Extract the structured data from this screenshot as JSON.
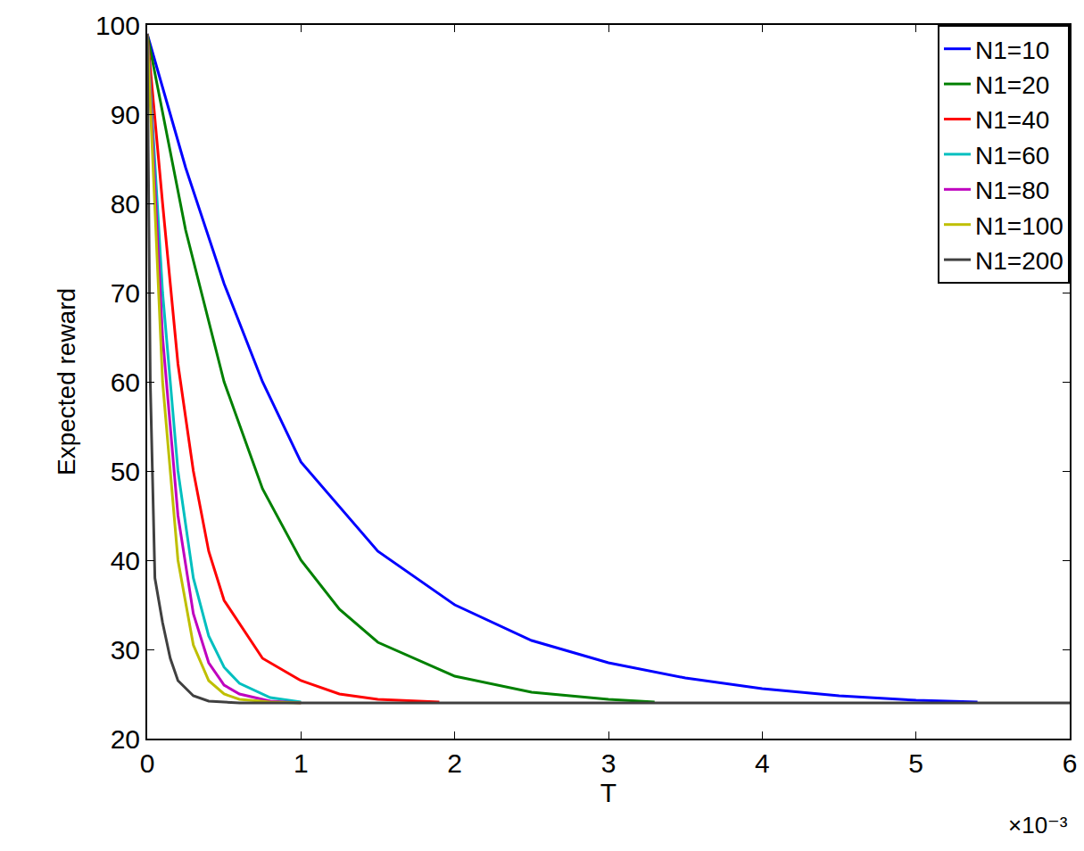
{
  "chart_data": {
    "type": "line",
    "x_label": "T",
    "y_label": "Expected reward",
    "annotations": [
      {
        "text": "×10⁻³"
      }
    ],
    "xlim": [
      0,
      0.006
    ],
    "xticks": [
      0,
      {
        "value": 0.001,
        "label": "1"
      },
      {
        "value": 0.002,
        "label": "2"
      },
      {
        "value": 0.003,
        "label": "3"
      },
      {
        "value": 0.004,
        "label": "4"
      },
      {
        "value": 0.005,
        "label": "5"
      },
      {
        "value": 0.006,
        "label": "6"
      }
    ],
    "ylim": [
      20,
      100
    ],
    "yticks": [
      20,
      30,
      40,
      50,
      60,
      70,
      80,
      90,
      100
    ],
    "grid": false,
    "legend": "top-right",
    "series": [
      {
        "name": "N1=10",
        "color": "#0000ff",
        "x": [
          0,
          0.00025,
          0.0005,
          0.00075,
          0.001,
          0.0015,
          0.002,
          0.0025,
          0.003,
          0.0035,
          0.004,
          0.0045,
          0.005,
          0.0054
        ],
        "values": [
          99,
          84,
          71,
          60,
          51,
          41,
          35,
          31,
          28.5,
          26.8,
          25.6,
          24.8,
          24.3,
          24.1
        ]
      },
      {
        "name": "N1=20",
        "color": "#008000",
        "x": [
          0,
          0.00025,
          0.0005,
          0.00075,
          0.001,
          0.00125,
          0.0015,
          0.002,
          0.0025,
          0.003,
          0.0033
        ],
        "values": [
          99,
          77,
          60,
          48,
          40,
          34.5,
          30.8,
          27,
          25.2,
          24.4,
          24.1
        ]
      },
      {
        "name": "N1=40",
        "color": "#ff0000",
        "x": [
          0,
          0.0001,
          0.0002,
          0.0003,
          0.0004,
          0.0005,
          0.00075,
          0.001,
          0.00125,
          0.0015,
          0.0019
        ],
        "values": [
          99,
          80,
          62,
          50,
          41,
          35.5,
          29,
          26.5,
          25,
          24.4,
          24.1
        ]
      },
      {
        "name": "N1=60",
        "color": "#00bfbf",
        "x": [
          0,
          0.0001,
          0.0002,
          0.0003,
          0.0004,
          0.0005,
          0.0006,
          0.0008,
          0.001
        ],
        "values": [
          99,
          70,
          50,
          38,
          31.5,
          28,
          26.2,
          24.6,
          24.1
        ]
      },
      {
        "name": "N1=80",
        "color": "#bf00bf",
        "x": [
          0,
          0.0001,
          0.0002,
          0.0003,
          0.0004,
          0.0005,
          0.0006,
          0.0008,
          0.001
        ],
        "values": [
          99,
          65,
          45,
          34,
          28.5,
          26,
          25,
          24.2,
          24
        ]
      },
      {
        "name": "N1=100",
        "color": "#bfbf00",
        "x": [
          0,
          0.0001,
          0.0002,
          0.0003,
          0.0004,
          0.0005,
          0.0006,
          0.0008,
          0.001
        ],
        "values": [
          99,
          60,
          40,
          30.5,
          26.5,
          25,
          24.4,
          24.1,
          24
        ]
      },
      {
        "name": "N1=200",
        "color": "#404040",
        "x": [
          0,
          2e-05,
          5e-05,
          0.0001,
          0.00015,
          0.0002,
          0.0003,
          0.0004,
          0.0006,
          0.001,
          0.006
        ],
        "values": [
          99,
          60,
          38,
          33,
          29,
          26.5,
          24.8,
          24.2,
          24,
          24,
          24
        ]
      }
    ]
  }
}
